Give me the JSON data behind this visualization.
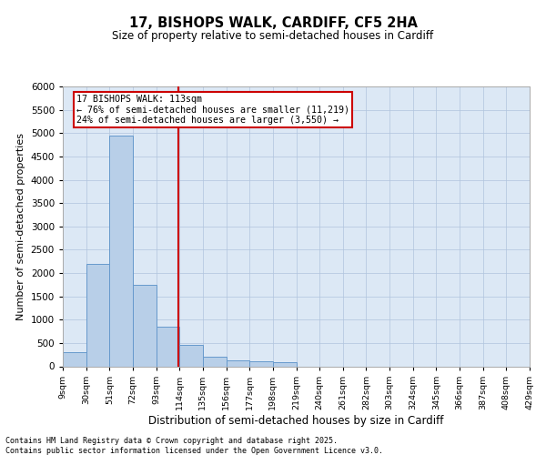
{
  "title_line1": "17, BISHOPS WALK, CARDIFF, CF5 2HA",
  "title_line2": "Size of property relative to semi-detached houses in Cardiff",
  "xlabel": "Distribution of semi-detached houses by size in Cardiff",
  "ylabel": "Number of semi-detached properties",
  "footer_line1": "Contains HM Land Registry data © Crown copyright and database right 2025.",
  "footer_line2": "Contains public sector information licensed under the Open Government Licence v3.0.",
  "property_label": "17 BISHOPS WALK: 113sqm",
  "pct_smaller": "← 76% of semi-detached houses are smaller (11,219)",
  "pct_larger": "24% of semi-detached houses are larger (3,550) →",
  "property_size": 113,
  "bar_edges": [
    9,
    30,
    51,
    72,
    93,
    114,
    135,
    156,
    177,
    198,
    219,
    240,
    261,
    282,
    303,
    324,
    345,
    366,
    387,
    408,
    429
  ],
  "bar_heights": [
    300,
    2200,
    4950,
    1750,
    850,
    450,
    200,
    120,
    100,
    80,
    0,
    0,
    0,
    0,
    0,
    0,
    0,
    0,
    0,
    0
  ],
  "bar_color": "#b8cfe8",
  "bar_edge_color": "#6699cc",
  "vline_color": "#cc0000",
  "box_edge_color": "#cc0000",
  "bg_color": "#dce8f5",
  "grid_color": "#b0c4de",
  "ylim": [
    0,
    6000
  ],
  "yticks": [
    0,
    500,
    1000,
    1500,
    2000,
    2500,
    3000,
    3500,
    4000,
    4500,
    5000,
    5500,
    6000
  ]
}
